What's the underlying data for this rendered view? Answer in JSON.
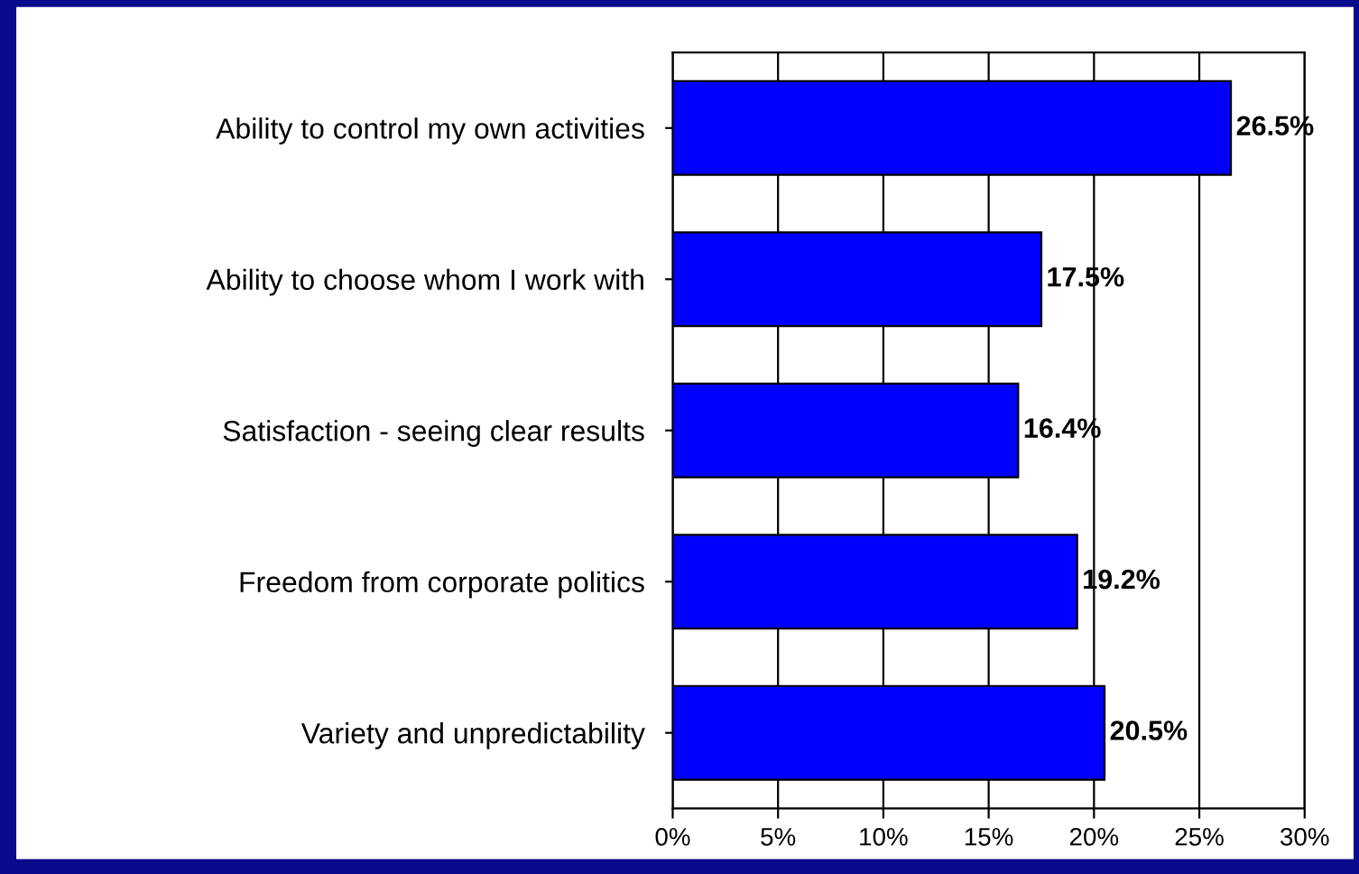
{
  "chart_data": {
    "type": "bar",
    "orientation": "horizontal",
    "categories": [
      "Ability to control my own activities",
      "Ability to choose whom I work with",
      "Satisfaction - seeing clear results",
      "Freedom from corporate politics",
      "Variety and unpredictability"
    ],
    "values": [
      26.5,
      17.5,
      16.4,
      19.2,
      20.5
    ],
    "value_labels": [
      "26.5%",
      "17.5%",
      "16.4%",
      "19.2%",
      "20.5%"
    ],
    "color": "#0000ff",
    "xlim": [
      0,
      30
    ],
    "xticks": [
      {
        "value": 0,
        "label": "0%"
      },
      {
        "value": 5,
        "label": "5%"
      },
      {
        "value": 10,
        "label": "10%"
      },
      {
        "value": 15,
        "label": "15%"
      },
      {
        "value": 20,
        "label": "20%"
      },
      {
        "value": 25,
        "label": "25%"
      },
      {
        "value": 30,
        "label": "30%"
      }
    ],
    "grid": "x",
    "legend": false
  }
}
